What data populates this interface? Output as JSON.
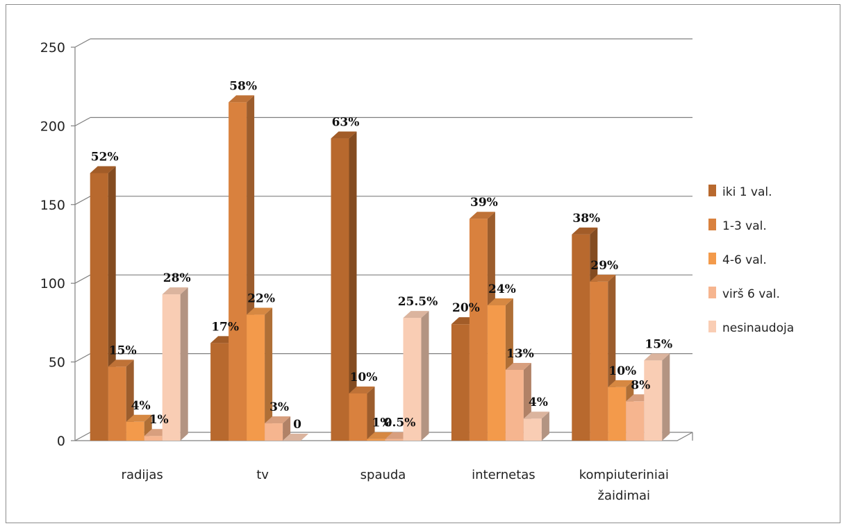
{
  "chart_data": {
    "type": "bar",
    "title": "",
    "xlabel": "",
    "ylabel": "",
    "ylim": [
      0,
      250
    ],
    "yticks": [
      0,
      50,
      100,
      150,
      200,
      250
    ],
    "grid": true,
    "legend_position": "right",
    "categories": [
      "radijas",
      "tv",
      "spauda",
      "internetas",
      "kompiuteriniai žaidimai"
    ],
    "series": [
      {
        "name": "iki 1 val.",
        "color": "#b8692e",
        "values": [
          170,
          62,
          192,
          74,
          131
        ],
        "labels": [
          "52%",
          "17%",
          "63%",
          "20%",
          "38%"
        ]
      },
      {
        "name": "1-3 val.",
        "color": "#d9813e",
        "values": [
          47,
          215,
          30,
          141,
          101
        ],
        "labels": [
          "15%",
          "58%",
          "10%",
          "39%",
          "29%"
        ]
      },
      {
        "name": "4-6 val.",
        "color": "#f39a4b",
        "values": [
          12,
          80,
          1,
          86,
          34
        ],
        "labels": [
          "4%",
          "22%",
          "1%",
          "24%",
          "10%"
        ]
      },
      {
        "name": "virš 6 val.",
        "color": "#f6b58f",
        "values": [
          3,
          11,
          1,
          45,
          25
        ],
        "labels": [
          "1%",
          "3%",
          "0.5%",
          "13%",
          "8%"
        ]
      },
      {
        "name": "nesinaudoja",
        "color": "#f9cdb4",
        "values": [
          93,
          0,
          78,
          14,
          51
        ],
        "labels": [
          "28%",
          "0",
          "25.5%",
          "4%",
          "15%"
        ]
      }
    ]
  }
}
